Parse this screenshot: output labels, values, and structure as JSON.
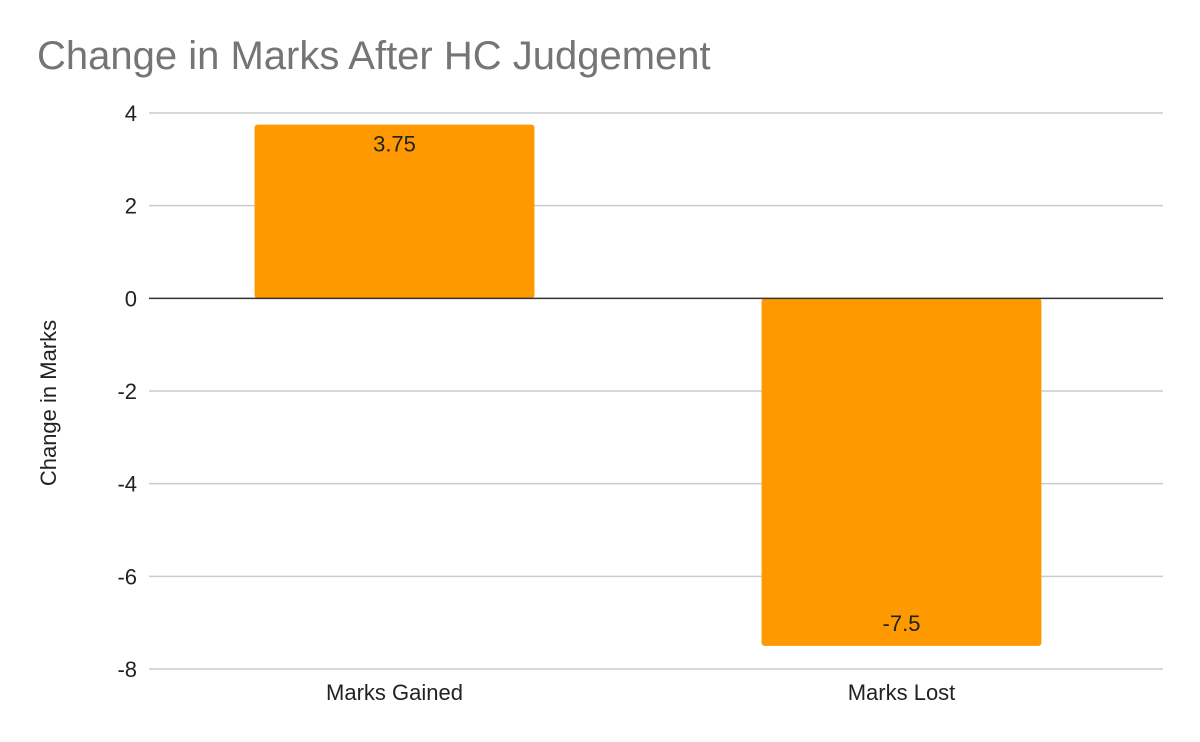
{
  "chart_data": {
    "type": "bar",
    "title": "Change in Marks After HC Judgement",
    "xlabel": "",
    "ylabel": "Change in Marks",
    "categories": [
      "Marks Gained",
      "Marks Lost"
    ],
    "values": [
      3.75,
      -7.5
    ],
    "data_labels": [
      "3.75",
      "-7.5"
    ],
    "ylim": [
      -8,
      4
    ],
    "yticks": [
      4,
      2,
      0,
      -2,
      -4,
      -6,
      -8
    ],
    "grid": true,
    "legend": "none",
    "bar_color": "#ff9900"
  }
}
